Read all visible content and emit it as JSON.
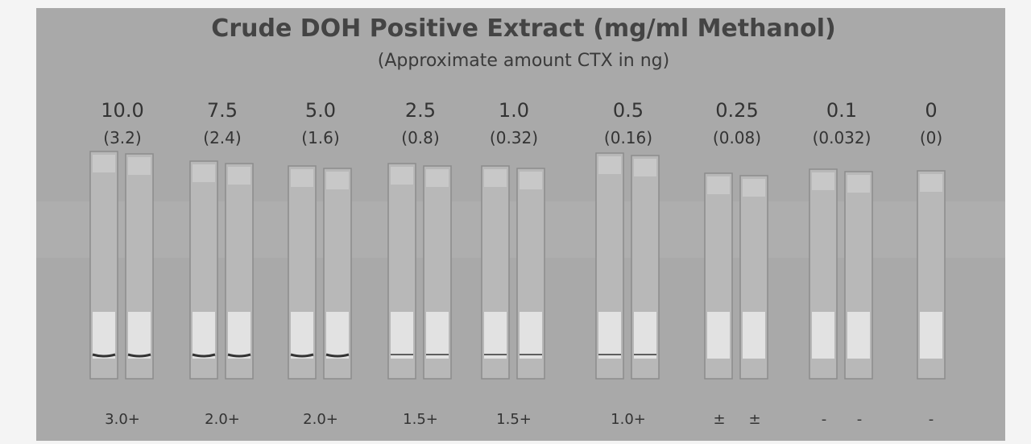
{
  "header": {
    "title": "Crude DOH Positive Extract (mg/ml Methanol)",
    "subtitle": "(Approximate amount CTX in ng)"
  },
  "groups": [
    {
      "concentration": "10.0",
      "ctx": "(3.2)",
      "scores": [
        "3.0+"
      ]
    },
    {
      "concentration": "7.5",
      "ctx": "(2.4)",
      "scores": [
        "2.0+"
      ]
    },
    {
      "concentration": "5.0",
      "ctx": "(1.6)",
      "scores": [
        "2.0+"
      ]
    },
    {
      "concentration": "2.5",
      "ctx": "(0.8)",
      "scores": [
        "1.5+"
      ]
    },
    {
      "concentration": "1.0",
      "ctx": "(0.32)",
      "scores": [
        "1.5+"
      ]
    },
    {
      "concentration": "0.5",
      "ctx": "(0.16)",
      "scores": [
        "1.0+"
      ]
    },
    {
      "concentration": "0.25",
      "ctx": "(0.08)",
      "scores": [
        "±",
        "±"
      ]
    },
    {
      "concentration": "0.1",
      "ctx": "(0.032)",
      "scores": [
        "-",
        "-"
      ]
    },
    {
      "concentration": "0",
      "ctx": "(0)",
      "scores": [
        "-"
      ]
    }
  ]
}
